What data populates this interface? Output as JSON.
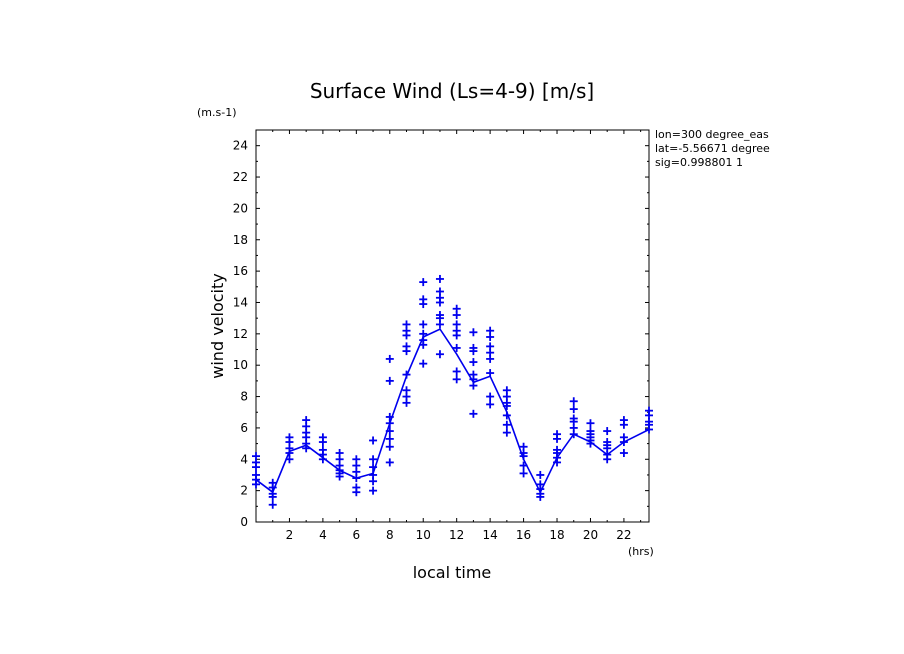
{
  "chart_data": {
    "type": "scatter",
    "title": "Surface Wind  (Ls=4-9) [m/s]",
    "xlabel": "local time",
    "ylabel": "wind velocity",
    "x_unit": "(hrs)",
    "y_unit": "(m.s-1)",
    "xlim": [
      0,
      23.5
    ],
    "ylim": [
      0,
      25
    ],
    "x_ticks": [
      2,
      4,
      6,
      8,
      10,
      12,
      14,
      16,
      18,
      20,
      22
    ],
    "y_ticks": [
      0,
      2,
      4,
      6,
      8,
      10,
      12,
      14,
      16,
      18,
      20,
      22,
      24
    ],
    "info_lines": [
      "lon=300 degree_eas",
      "lat=-5.56671 degree",
      "sig=0.998801 1"
    ],
    "color": "#0000ee",
    "mean_line": {
      "name": "mean",
      "x": [
        0,
        1,
        2,
        3,
        4,
        5,
        6,
        7,
        8,
        9,
        10,
        11,
        12,
        13,
        14,
        15,
        16,
        17,
        18,
        19,
        20,
        21,
        22,
        23.5
      ],
      "y": [
        2.7,
        1.9,
        4.5,
        4.9,
        4.1,
        3.3,
        2.8,
        3.1,
        6.3,
        9.3,
        11.8,
        12.3,
        10.7,
        8.9,
        9.3,
        7.0,
        4.0,
        1.9,
        4.1,
        5.6,
        5.1,
        4.3,
        5.1,
        5.9
      ]
    },
    "points": [
      {
        "x": 0,
        "y": [
          4.2,
          3.8,
          3.5,
          3.0,
          2.7,
          2.4
        ]
      },
      {
        "x": 1,
        "y": [
          2.5,
          2.2,
          1.8,
          1.6,
          1.1
        ]
      },
      {
        "x": 2,
        "y": [
          5.4,
          5.1,
          4.7,
          4.4,
          4.0
        ]
      },
      {
        "x": 3,
        "y": [
          6.5,
          6.1,
          5.7,
          5.4,
          5.0,
          4.7
        ]
      },
      {
        "x": 4,
        "y": [
          5.4,
          5.1,
          4.6,
          4.3,
          4.0
        ]
      },
      {
        "x": 5,
        "y": [
          4.4,
          4.0,
          3.6,
          3.3,
          3.1,
          2.9
        ]
      },
      {
        "x": 6,
        "y": [
          4.0,
          3.6,
          3.2,
          2.8,
          2.2,
          1.9
        ]
      },
      {
        "x": 7,
        "y": [
          5.2,
          4.0,
          3.5,
          3.0,
          2.6,
          2.0
        ]
      },
      {
        "x": 8,
        "y": [
          10.4,
          9.0,
          6.7,
          6.3,
          5.8,
          5.3,
          4.8,
          3.8
        ]
      },
      {
        "x": 9,
        "y": [
          12.6,
          12.2,
          11.9,
          11.2,
          10.9,
          9.4,
          8.4,
          8.0,
          7.6
        ]
      },
      {
        "x": 10,
        "y": [
          15.3,
          14.2,
          13.9,
          12.6,
          12.0,
          11.6,
          11.3,
          10.1
        ]
      },
      {
        "x": 11,
        "y": [
          15.5,
          14.7,
          14.3,
          14.0,
          13.2,
          13.0,
          12.6,
          10.7
        ]
      },
      {
        "x": 12,
        "y": [
          13.6,
          13.2,
          12.6,
          12.2,
          11.9,
          11.1,
          9.6,
          9.1
        ]
      },
      {
        "x": 13,
        "y": [
          12.1,
          11.1,
          10.9,
          10.2,
          9.4,
          9.1,
          8.7,
          6.9
        ]
      },
      {
        "x": 14,
        "y": [
          12.2,
          11.8,
          11.2,
          10.8,
          10.4,
          9.5,
          8.0,
          7.5
        ]
      },
      {
        "x": 15,
        "y": [
          8.4,
          8.0,
          7.6,
          7.4,
          6.8,
          6.2,
          5.7
        ]
      },
      {
        "x": 16,
        "y": [
          4.8,
          4.4,
          4.2,
          3.6,
          3.1
        ]
      },
      {
        "x": 17,
        "y": [
          3.0,
          2.4,
          2.1,
          1.8,
          1.6
        ]
      },
      {
        "x": 18,
        "y": [
          5.6,
          5.3,
          4.6,
          4.4,
          4.1,
          3.8
        ]
      },
      {
        "x": 19,
        "y": [
          7.7,
          7.2,
          6.6,
          6.4,
          6.0,
          5.6
        ]
      },
      {
        "x": 20,
        "y": [
          6.3,
          5.8,
          5.6,
          5.4,
          5.2,
          5.0
        ]
      },
      {
        "x": 21,
        "y": [
          5.8,
          5.1,
          4.9,
          4.7,
          4.3,
          4.0
        ]
      },
      {
        "x": 22,
        "y": [
          6.5,
          6.2,
          5.4,
          5.1,
          4.4
        ]
      },
      {
        "x": 23.5,
        "y": [
          7.1,
          6.8,
          6.4,
          6.2,
          5.9
        ]
      }
    ]
  }
}
